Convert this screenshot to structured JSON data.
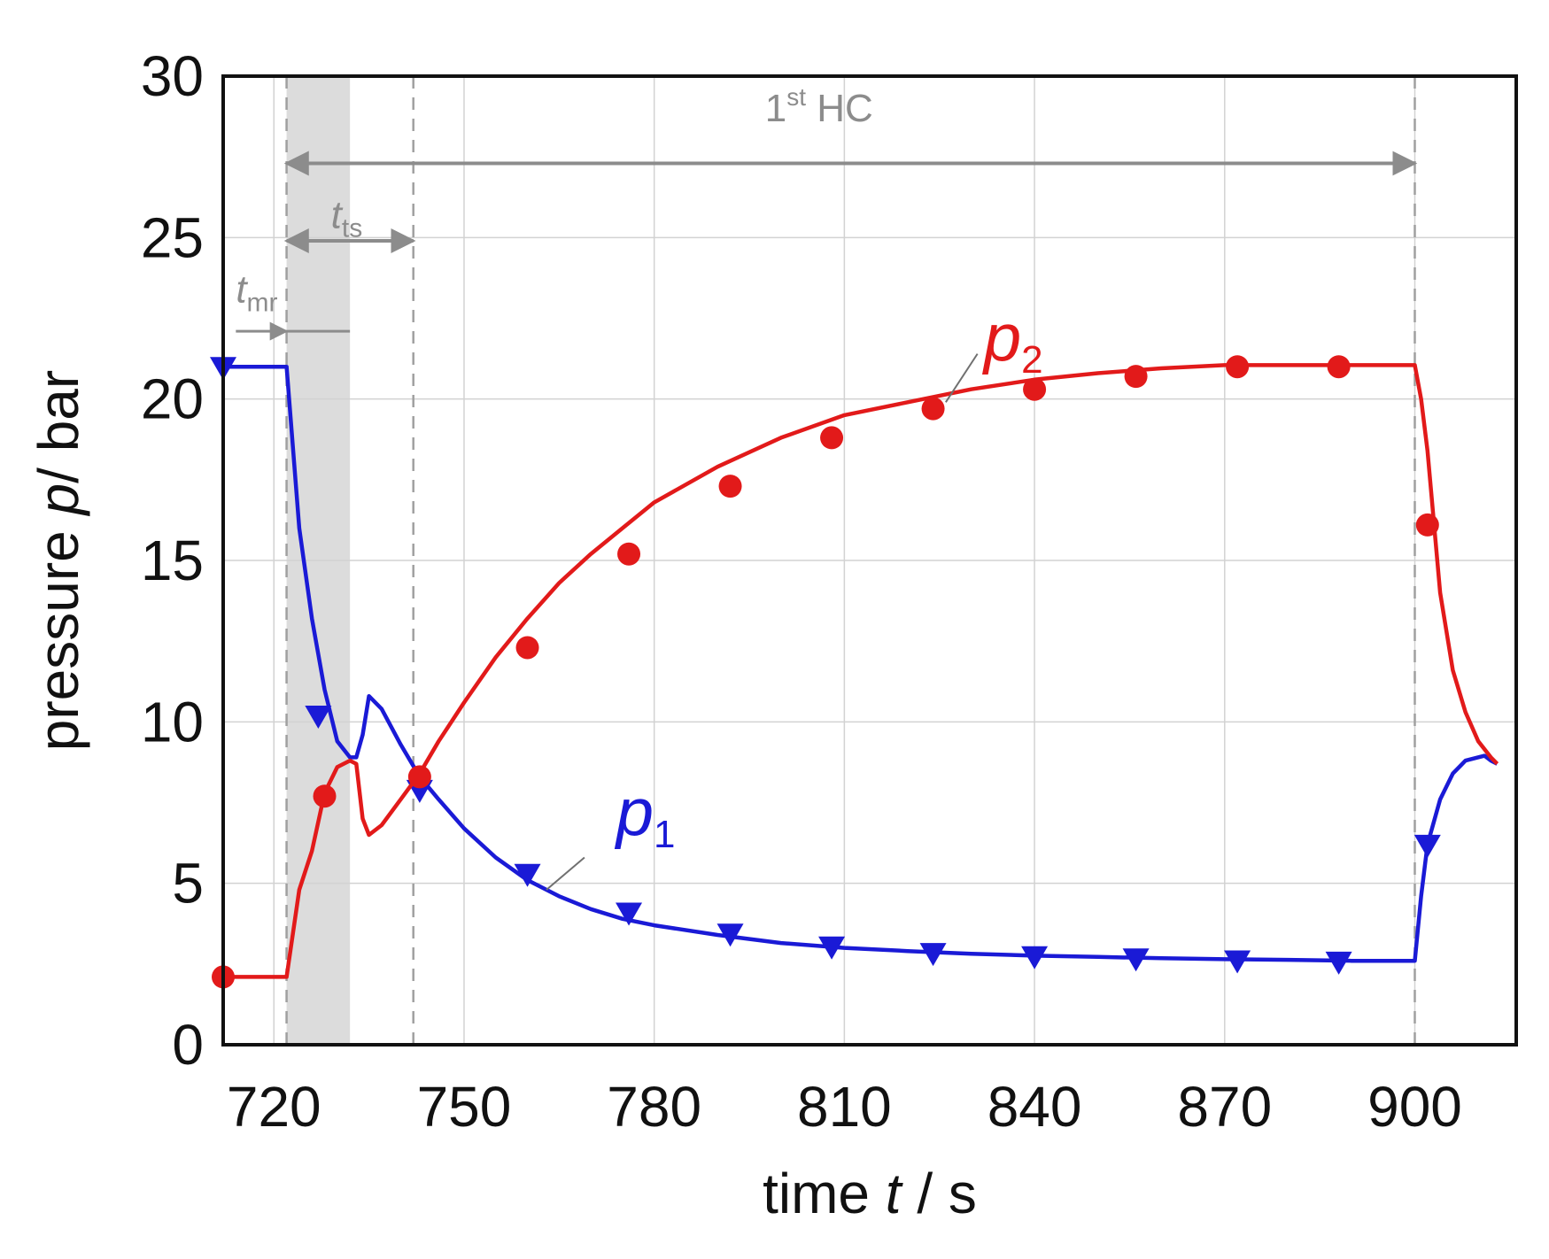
{
  "chart_data": {
    "type": "line",
    "title": "",
    "xlabel": {
      "prefix": "time ",
      "var": "t",
      "suffix": " / s"
    },
    "ylabel": {
      "prefix": "pressure ",
      "var": "p",
      "suffix": "/ bar"
    },
    "xlim": [
      712,
      916
    ],
    "ylim": [
      0,
      30
    ],
    "xticks": [
      720,
      750,
      780,
      810,
      840,
      870,
      900
    ],
    "yticks": [
      0,
      5,
      10,
      15,
      20,
      25,
      30
    ],
    "grid": true,
    "series": [
      {
        "name": "p1",
        "label_var": "p",
        "label_sub": "1",
        "color": "#1a1ad6",
        "marker": "triangle-down",
        "points": [
          [
            712,
            21.0
          ],
          [
            722,
            21.0
          ],
          [
            724,
            16.0
          ],
          [
            726,
            13.2
          ],
          [
            728,
            11.0
          ],
          [
            730,
            9.4
          ],
          [
            732,
            8.9
          ],
          [
            733,
            8.9
          ],
          [
            734,
            9.6
          ],
          [
            735,
            10.8
          ],
          [
            737,
            10.4
          ],
          [
            740,
            9.3
          ],
          [
            743,
            8.3
          ],
          [
            746,
            7.6
          ],
          [
            750,
            6.7
          ],
          [
            755,
            5.8
          ],
          [
            760,
            5.1
          ],
          [
            765,
            4.6
          ],
          [
            770,
            4.2
          ],
          [
            775,
            3.9
          ],
          [
            780,
            3.7
          ],
          [
            790,
            3.4
          ],
          [
            800,
            3.15
          ],
          [
            810,
            3.0
          ],
          [
            820,
            2.9
          ],
          [
            830,
            2.82
          ],
          [
            840,
            2.76
          ],
          [
            850,
            2.72
          ],
          [
            860,
            2.68
          ],
          [
            870,
            2.65
          ],
          [
            880,
            2.63
          ],
          [
            890,
            2.6
          ],
          [
            900,
            2.6
          ],
          [
            901,
            4.6
          ],
          [
            902,
            6.2
          ],
          [
            904,
            7.6
          ],
          [
            906,
            8.4
          ],
          [
            908,
            8.8
          ],
          [
            911,
            8.95
          ],
          [
            912,
            8.8
          ],
          [
            913,
            8.7
          ]
        ],
        "marker_points": [
          [
            712,
            21.0
          ],
          [
            727,
            10.2
          ],
          [
            743,
            7.9
          ],
          [
            760,
            5.3
          ],
          [
            776,
            4.1
          ],
          [
            792,
            3.45
          ],
          [
            808,
            3.05
          ],
          [
            824,
            2.85
          ],
          [
            840,
            2.75
          ],
          [
            856,
            2.68
          ],
          [
            872,
            2.62
          ],
          [
            888,
            2.58
          ],
          [
            902,
            6.2
          ]
        ]
      },
      {
        "name": "p2",
        "label_var": "p",
        "label_sub": "2",
        "color": "#e21a1a",
        "marker": "circle",
        "points": [
          [
            712,
            2.1
          ],
          [
            722,
            2.1
          ],
          [
            724,
            4.8
          ],
          [
            726,
            6.0
          ],
          [
            728,
            7.8
          ],
          [
            730,
            8.6
          ],
          [
            732,
            8.8
          ],
          [
            733,
            8.7
          ],
          [
            734,
            7.0
          ],
          [
            735,
            6.5
          ],
          [
            737,
            6.8
          ],
          [
            740,
            7.6
          ],
          [
            743,
            8.4
          ],
          [
            746,
            9.4
          ],
          [
            750,
            10.6
          ],
          [
            755,
            12.0
          ],
          [
            760,
            13.2
          ],
          [
            765,
            14.3
          ],
          [
            770,
            15.2
          ],
          [
            775,
            16.0
          ],
          [
            780,
            16.8
          ],
          [
            790,
            17.9
          ],
          [
            800,
            18.8
          ],
          [
            810,
            19.5
          ],
          [
            820,
            19.9
          ],
          [
            830,
            20.3
          ],
          [
            840,
            20.6
          ],
          [
            850,
            20.8
          ],
          [
            860,
            20.95
          ],
          [
            870,
            21.05
          ],
          [
            880,
            21.05
          ],
          [
            890,
            21.05
          ],
          [
            900,
            21.05
          ],
          [
            901,
            20.0
          ],
          [
            902,
            18.4
          ],
          [
            904,
            14.0
          ],
          [
            906,
            11.6
          ],
          [
            908,
            10.3
          ],
          [
            910,
            9.4
          ],
          [
            912,
            8.9
          ],
          [
            913,
            8.7
          ]
        ],
        "marker_points": [
          [
            712,
            2.1
          ],
          [
            728,
            7.7
          ],
          [
            743,
            8.3
          ],
          [
            760,
            12.3
          ],
          [
            776,
            15.2
          ],
          [
            792,
            17.3
          ],
          [
            808,
            18.8
          ],
          [
            824,
            19.7
          ],
          [
            840,
            20.3
          ],
          [
            856,
            20.7
          ],
          [
            872,
            21.0
          ],
          [
            888,
            21.0
          ],
          [
            902,
            16.1
          ]
        ]
      }
    ],
    "shaded_region": {
      "from": 722,
      "to": 732,
      "color": "#dcdcdc"
    },
    "vlines": [
      722,
      742,
      900
    ],
    "annotations": {
      "hc": {
        "main": "1",
        "sup": "st",
        "rest": " HC",
        "from": 722,
        "to": 900,
        "y": 27.3,
        "text_x": 806,
        "text_y": 28.6
      },
      "t_ts": {
        "var": "t",
        "sub": "ts",
        "from": 722,
        "to": 742,
        "y": 24.9,
        "text_x": 729,
        "text_y": 25.3
      },
      "t_mr": {
        "var": "t",
        "sub": "mr",
        "from": 714,
        "to": 722,
        "bar_to": 732,
        "y": 22.1,
        "text_x": 714,
        "text_y": 23.0
      }
    },
    "series_callouts": [
      {
        "series": "p1",
        "text_x": 774,
        "text_y": 6.5,
        "line_from": [
          769,
          5.8
        ],
        "line_to": [
          763,
          4.8
        ]
      },
      {
        "series": "p2",
        "text_x": 832,
        "text_y": 21.2,
        "line_from": [
          831,
          21.4
        ],
        "line_to": [
          826,
          19.9
        ]
      }
    ],
    "colors": {
      "annotation": "#8c8c8c",
      "grid": "#d2d2d2",
      "axis": "#111111"
    }
  }
}
